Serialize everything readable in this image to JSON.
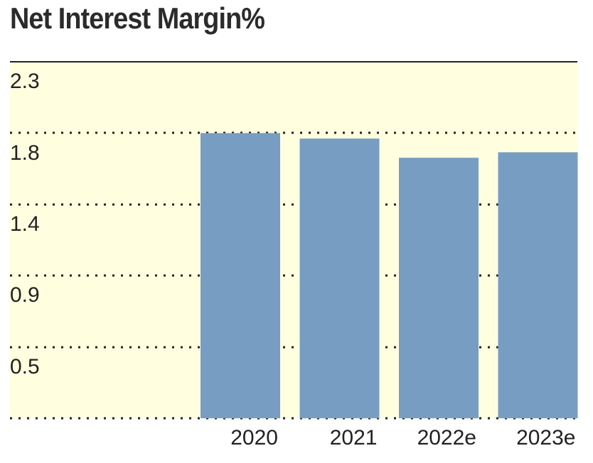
{
  "chart_data": {
    "type": "bar",
    "title": "Net Interest Margin%",
    "categories": [
      "2020",
      "2021",
      "2022e",
      "2023e"
    ],
    "values": [
      2.08,
      2.04,
      1.9,
      1.94
    ],
    "ytick_labels": [
      "2.3",
      "1.8",
      "1.4",
      "0.9",
      "0.5"
    ],
    "ylim": [
      0,
      2.6
    ],
    "grid": "dotted horizontal",
    "colors": {
      "bar": "#789dc3",
      "plot_background": "#ffffe0",
      "text": "#222222"
    }
  }
}
